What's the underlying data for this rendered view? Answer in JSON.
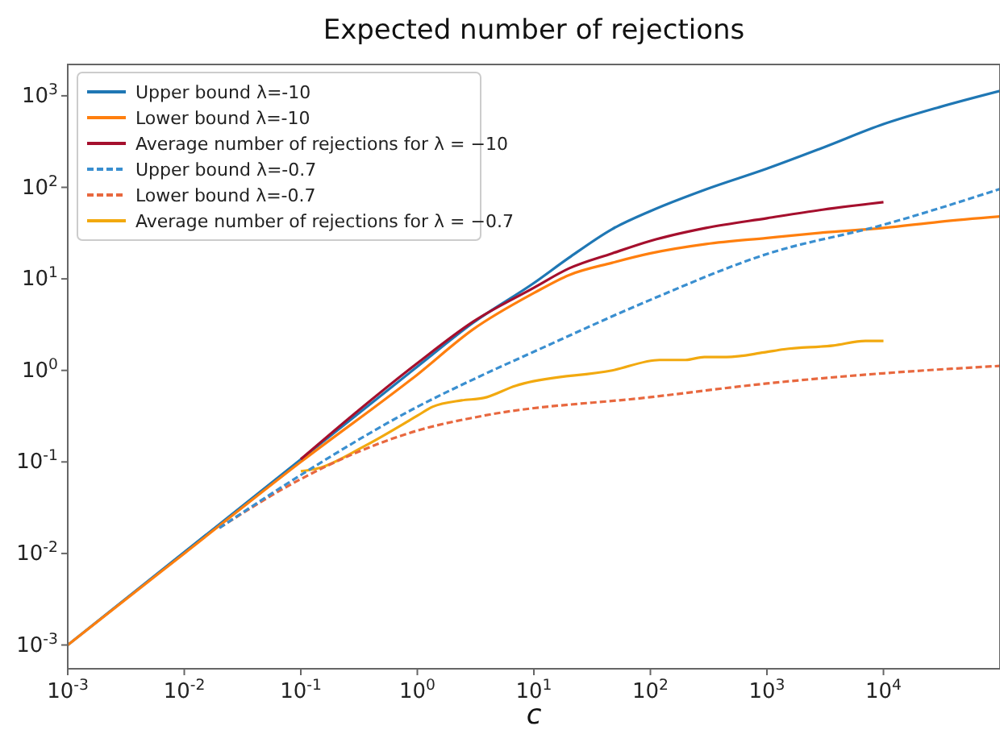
{
  "chart_data": {
    "type": "line",
    "title": "Expected number of rejections",
    "xlabel": "c",
    "log": "xy",
    "grid": false,
    "legend": "top left",
    "xlim": [
      0.001,
      100000
    ],
    "ylim": [
      0.00055,
      2200
    ],
    "xticks": [
      {
        "value": 0.001,
        "label": "10$^{-3}$"
      },
      {
        "value": 0.01,
        "label": "10$^{-2}$"
      },
      {
        "value": 0.1,
        "label": "10$^{-1}$"
      },
      {
        "value": 1,
        "label": "10$^{0}$"
      },
      {
        "value": 10,
        "label": "10$^{1}$"
      },
      {
        "value": 100,
        "label": "10$^{2}$"
      },
      {
        "value": 1000,
        "label": "10$^{3}$"
      },
      {
        "value": 10000,
        "label": "10$^{4}$"
      }
    ],
    "yticks": [
      {
        "value": 0.001,
        "label": "10$^{-3}$"
      },
      {
        "value": 0.01,
        "label": "10$^{-2}$"
      },
      {
        "value": 0.1,
        "label": "10$^{-1}$"
      },
      {
        "value": 1,
        "label": "10$^{0}$"
      },
      {
        "value": 10,
        "label": "10$^{1}$"
      },
      {
        "value": 100,
        "label": "10$^{2}$"
      },
      {
        "value": 1000,
        "label": "10$^{3}$"
      }
    ],
    "series": [
      {
        "name": "Upper bound λ=-10",
        "color": "#1f77b4",
        "line_style": "solid",
        "x": [
          0.001,
          0.01,
          0.1,
          1,
          3,
          10,
          20,
          47,
          100,
          300,
          1000,
          3000,
          10000,
          30000,
          100000
        ],
        "values": [
          0.001,
          null,
          null,
          1.1,
          3.3,
          9,
          17,
          35,
          55,
          95,
          160,
          270,
          490,
          750,
          1130
        ]
      },
      {
        "name": "Lower bound λ=-10",
        "color": "#ff7f0e",
        "line_style": "solid",
        "x": [
          0.001,
          0.01,
          0.1,
          1,
          3,
          10,
          20,
          47,
          100,
          300,
          1000,
          3000,
          10000,
          30000,
          100000
        ],
        "values": [
          0.001,
          0.01,
          0.1,
          0.9,
          2.8,
          7,
          11,
          15,
          19,
          24,
          28,
          32,
          36,
          42,
          48
        ]
      },
      {
        "name": "Average number of rejections for λ = −10",
        "color": "#a50f2d",
        "line_style": "solid",
        "x": [
          0.1,
          0.3,
          1,
          3,
          10,
          20,
          47,
          100,
          300,
          1000,
          3000,
          10000
        ],
        "values": [
          0.107,
          0.35,
          1.2,
          3.4,
          8,
          13,
          19,
          26,
          36,
          46,
          57,
          69
        ]
      },
      {
        "name": "Upper bound λ=-0.7",
        "color": "#3a8fd0",
        "line_style": "dashed",
        "x": [
          0.02,
          0.1,
          1,
          3.7,
          10,
          100,
          1000,
          10000,
          100000
        ],
        "values": [
          0.019,
          0.072,
          0.4,
          0.9,
          1.6,
          5.9,
          18.7,
          39,
          96
        ]
      },
      {
        "name": "Lower bound λ=-0.7",
        "color": "#e8683f",
        "line_style": "dashed",
        "x": [
          0.02,
          0.1,
          1,
          3.7,
          100,
          1000,
          10000,
          100000
        ],
        "values": [
          0.019,
          0.065,
          0.22,
          0.32,
          0.51,
          0.72,
          0.93,
          1.12
        ]
      },
      {
        "name": "Average number of rejections for λ = −0.7",
        "color": "#f2a90f",
        "line_style": "solid",
        "x": [
          0.1,
          0.14,
          0.355,
          1,
          1.35,
          2.4,
          3.7,
          7,
          8.2,
          47,
          120,
          200,
          290,
          450,
          940,
          1400,
          3700,
          7000,
          10000
        ],
        "values": [
          0.079,
          0.085,
          0.15,
          0.32,
          0.4,
          0.47,
          0.5,
          0.68,
          0.72,
          1.0,
          1.3,
          1.3,
          1.4,
          1.4,
          1.57,
          1.7,
          1.87,
          2.1,
          2.1
        ]
      }
    ]
  }
}
